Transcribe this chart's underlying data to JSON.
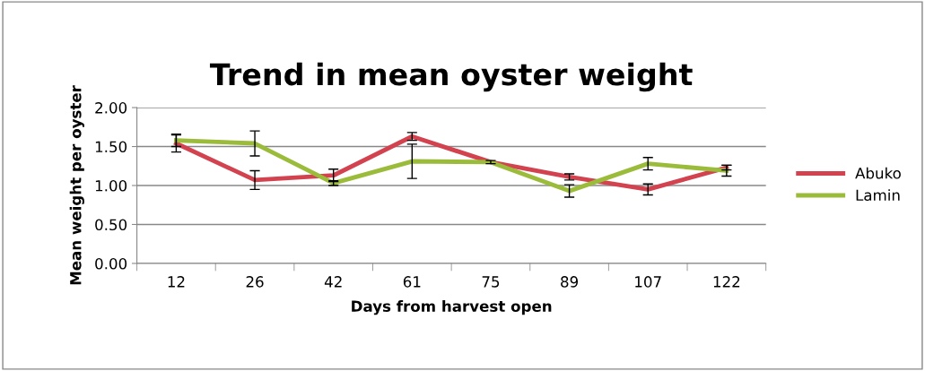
{
  "chart_data": {
    "type": "line",
    "title": "Trend in mean oyster weight",
    "xlabel": "Days from harvest open",
    "ylabel": "Mean weight per oyster",
    "categories": [
      "12",
      "26",
      "42",
      "61",
      "75",
      "89",
      "107",
      "122"
    ],
    "series": [
      {
        "name": "Abuko",
        "color": "#d2424f",
        "values": [
          1.54,
          1.07,
          1.13,
          1.63,
          1.3,
          1.11,
          0.95,
          1.23
        ],
        "errors": [
          0.11,
          0.12,
          0.08,
          0.05,
          0.02,
          0.04,
          0.07,
          0.03
        ]
      },
      {
        "name": "Lamin",
        "color": "#9bbb3b",
        "values": [
          1.58,
          1.54,
          1.03,
          1.31,
          1.3,
          0.93,
          1.28,
          1.19
        ],
        "errors": [
          0.08,
          0.16,
          0.03,
          0.22,
          null,
          0.08,
          0.08,
          0.07
        ]
      }
    ],
    "ylim": [
      0,
      2
    ],
    "yticks": [
      {
        "value": 0,
        "label": "0.00"
      },
      {
        "value": 0.5,
        "label": "0.50"
      },
      {
        "value": 1,
        "label": "1.00"
      },
      {
        "value": 1.5,
        "label": "1.50"
      },
      {
        "value": 2,
        "label": "2.00"
      }
    ],
    "grid": "y",
    "legend": "right",
    "marker": "none",
    "line_style": "solid"
  }
}
